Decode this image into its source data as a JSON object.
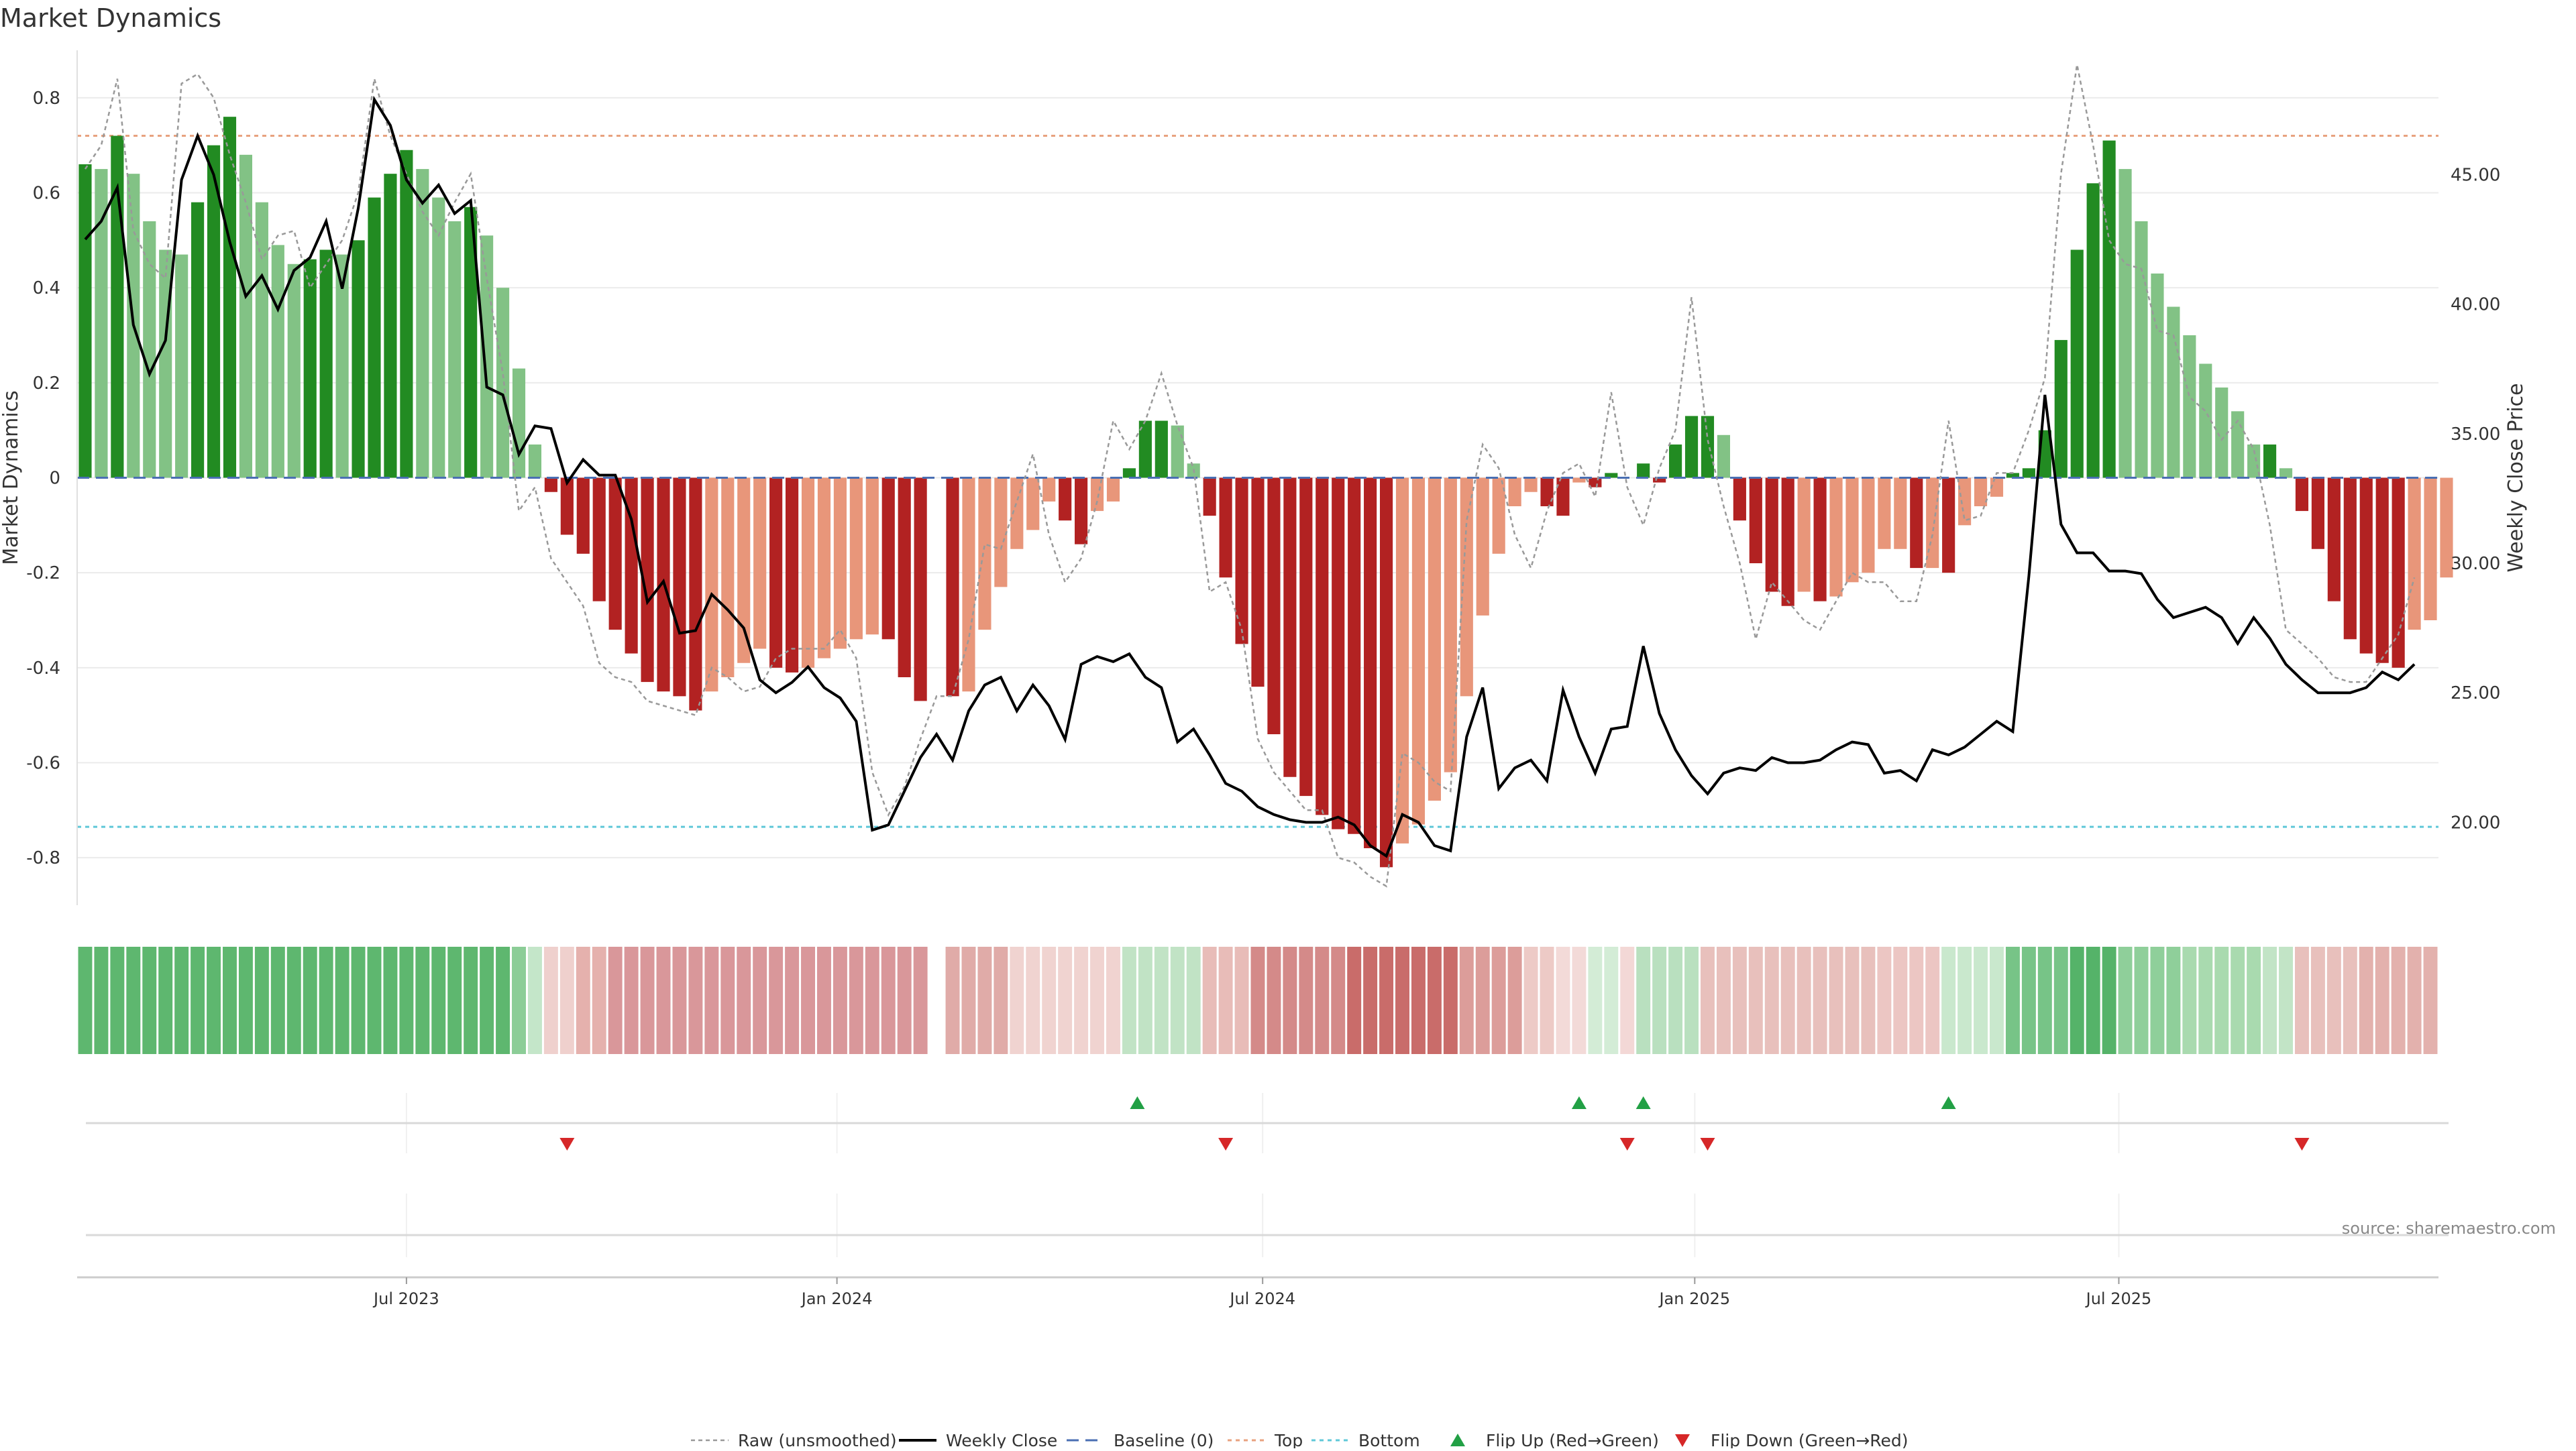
{
  "chart_data": {
    "type": "bar",
    "title": "Market Dynamics",
    "ylabel": "Market Dynamics",
    "y2label": "Weekly Close Price",
    "ylim": [
      -0.9,
      0.9
    ],
    "y2lim": [
      16.8,
      49.8
    ],
    "yticks": [
      -0.8,
      -0.6,
      -0.4,
      -0.2,
      0,
      0.2,
      0.4,
      0.6,
      0.8
    ],
    "ytick_labels": [
      "-0.8",
      "-0.6",
      "-0.4",
      "-0.2",
      "0",
      "0.2",
      "0.4",
      "0.6",
      "0.8"
    ],
    "y2ticks": [
      20,
      25,
      30,
      35,
      40,
      45
    ],
    "y2tick_labels": [
      "20.00",
      "25.00",
      "30.00",
      "35.00",
      "40.00",
      "45.00"
    ],
    "x_week_range": [
      0,
      147
    ],
    "xticks": [
      {
        "week": 20.5,
        "label": "Jul 2023"
      },
      {
        "week": 47.3,
        "label": "Jan 2024"
      },
      {
        "week": 73.8,
        "label": "Jul 2024"
      },
      {
        "week": 100.7,
        "label": "Jan 2025"
      },
      {
        "week": 127.1,
        "label": "Jul 2025"
      }
    ],
    "top_threshold": 0.72,
    "bottom_threshold": -0.735,
    "baseline": 0,
    "series": [
      {
        "name": "Market Dynamics",
        "values": [
          0.66,
          0.65,
          0.72,
          0.64,
          0.54,
          0.48,
          0.47,
          0.58,
          0.7,
          0.76,
          0.68,
          0.58,
          0.49,
          0.45,
          0.46,
          0.48,
          0.47,
          0.5,
          0.59,
          0.64,
          0.69,
          0.65,
          0.59,
          0.54,
          0.57,
          0.51,
          0.4,
          0.23,
          0.07,
          -0.03,
          -0.12,
          -0.16,
          -0.26,
          -0.32,
          -0.37,
          -0.43,
          -0.45,
          -0.46,
          -0.49,
          -0.45,
          -0.42,
          -0.39,
          -0.36,
          -0.4,
          -0.41,
          -0.4,
          -0.38,
          -0.36,
          -0.34,
          -0.33,
          -0.34,
          -0.42,
          -0.47,
          0.0,
          -0.46,
          -0.45,
          -0.32,
          -0.23,
          -0.15,
          -0.11,
          -0.05,
          -0.09,
          -0.14,
          -0.07,
          -0.05,
          0.02,
          0.12,
          0.12,
          0.11,
          0.03,
          -0.08,
          -0.21,
          -0.35,
          -0.44,
          -0.54,
          -0.63,
          -0.67,
          -0.71,
          -0.74,
          -0.75,
          -0.78,
          -0.82,
          -0.77,
          -0.73,
          -0.68,
          -0.62,
          -0.46,
          -0.29,
          -0.16,
          -0.06,
          -0.03,
          -0.06,
          -0.08,
          -0.01,
          -0.02,
          0.01,
          0.0,
          0.03,
          -0.01,
          0.07,
          0.13,
          0.13,
          0.09,
          -0.09,
          -0.18,
          -0.24,
          -0.27,
          -0.24,
          -0.26,
          -0.25,
          -0.22,
          -0.2,
          -0.15,
          -0.15,
          -0.19,
          -0.19,
          -0.2,
          -0.1,
          -0.06,
          -0.04,
          0.01,
          0.02,
          0.1,
          0.29,
          0.48,
          0.62,
          0.71,
          0.65,
          0.54,
          0.43,
          0.36,
          0.3,
          0.24,
          0.19,
          0.14,
          0.07,
          0.07,
          0.02,
          -0.07,
          -0.15,
          -0.26,
          -0.34,
          -0.37,
          -0.39,
          -0.4,
          -0.32,
          -0.3,
          -0.21
        ]
      },
      {
        "name": "Raw (unsmoothed)",
        "values": [
          0.65,
          0.7,
          0.84,
          0.52,
          0.45,
          0.42,
          0.83,
          0.85,
          0.8,
          0.68,
          0.58,
          0.46,
          0.51,
          0.52,
          0.4,
          0.45,
          0.5,
          0.6,
          0.84,
          0.72,
          0.64,
          0.56,
          0.51,
          0.58,
          0.64,
          0.42,
          0.22,
          -0.07,
          -0.02,
          -0.17,
          -0.22,
          -0.27,
          -0.39,
          -0.42,
          -0.43,
          -0.47,
          -0.48,
          -0.49,
          -0.5,
          -0.4,
          -0.42,
          -0.45,
          -0.44,
          -0.38,
          -0.36,
          -0.36,
          -0.36,
          -0.32,
          -0.38,
          -0.62,
          -0.71,
          -0.65,
          -0.55,
          -0.46,
          -0.46,
          -0.34,
          -0.14,
          -0.15,
          -0.05,
          0.05,
          -0.12,
          -0.22,
          -0.17,
          -0.05,
          0.12,
          0.06,
          0.12,
          0.22,
          0.11,
          0.02,
          -0.24,
          -0.22,
          -0.32,
          -0.55,
          -0.62,
          -0.66,
          -0.7,
          -0.7,
          -0.8,
          -0.81,
          -0.84,
          -0.86,
          -0.58,
          -0.6,
          -0.64,
          -0.66,
          -0.09,
          0.07,
          0.02,
          -0.12,
          -0.19,
          -0.07,
          0.01,
          0.03,
          -0.04,
          0.18,
          -0.02,
          -0.1,
          0.02,
          0.1,
          0.38,
          0.08,
          -0.06,
          -0.18,
          -0.34,
          -0.22,
          -0.26,
          -0.3,
          -0.32,
          -0.26,
          -0.2,
          -0.22,
          -0.22,
          -0.26,
          -0.26,
          -0.12,
          0.12,
          -0.09,
          -0.08,
          0.01,
          0.01,
          0.1,
          0.21,
          0.64,
          0.87,
          0.7,
          0.5,
          0.45,
          0.44,
          0.31,
          0.3,
          0.17,
          0.14,
          0.08,
          0.12,
          0.06,
          -0.1,
          -0.32,
          -0.35,
          -0.38,
          -0.42,
          -0.43,
          -0.43,
          -0.38,
          -0.33,
          -0.21
        ]
      },
      {
        "name": "Weekly Close",
        "values": [
          42.5,
          43.2,
          44.5,
          39.2,
          37.3,
          38.6,
          44.8,
          46.5,
          45.0,
          42.4,
          40.3,
          41.1,
          39.8,
          41.3,
          41.8,
          43.2,
          40.6,
          43.7,
          47.9,
          46.9,
          44.8,
          43.9,
          44.6,
          43.5,
          44.0,
          36.8,
          36.5,
          34.2,
          35.3,
          35.2,
          33.1,
          34.0,
          33.4,
          33.4,
          31.7,
          28.5,
          29.3,
          27.3,
          27.4,
          28.8,
          28.2,
          27.5,
          25.5,
          25.0,
          25.4,
          26.0,
          25.2,
          24.8,
          23.9,
          19.7,
          19.9,
          21.2,
          22.5,
          23.4,
          22.4,
          24.3,
          25.3,
          25.6,
          24.3,
          25.3,
          24.5,
          23.2,
          26.1,
          26.4,
          26.2,
          26.5,
          25.6,
          25.2,
          23.1,
          23.6,
          22.6,
          21.5,
          21.2,
          20.6,
          20.3,
          20.1,
          20.0,
          20.0,
          20.2,
          19.9,
          19.1,
          18.7,
          20.3,
          20.0,
          19.1,
          18.9,
          23.3,
          25.2,
          21.3,
          22.1,
          22.4,
          21.6,
          25.1,
          23.3,
          21.9,
          23.6,
          23.7,
          26.8,
          24.2,
          22.8,
          21.8,
          21.1,
          21.9,
          22.1,
          22.0,
          22.5,
          22.3,
          22.3,
          22.4,
          22.8,
          23.1,
          23.0,
          21.9,
          22.0,
          21.6,
          22.8,
          22.6,
          22.9,
          23.4,
          23.9,
          23.5,
          29.5,
          36.5,
          31.5,
          30.4,
          30.4,
          29.7,
          29.7,
          29.6,
          28.6,
          27.9,
          28.1,
          28.3,
          27.9,
          26.9,
          27.9,
          27.1,
          26.1,
          25.5,
          25.0,
          25.0,
          25.0,
          25.2,
          25.8,
          25.5,
          26.1
        ]
      }
    ],
    "heat_strip": [
      {
        "start": 0,
        "end": 27,
        "color": "#5eb76f"
      },
      {
        "start": 27,
        "end": 28,
        "color": "#8ccd97"
      },
      {
        "start": 28,
        "end": 29,
        "color": "#c4e6c9"
      },
      {
        "start": 29,
        "end": 31,
        "color": "#efd0cd"
      },
      {
        "start": 31,
        "end": 33,
        "color": "#e5b1ad"
      },
      {
        "start": 33,
        "end": 53,
        "color": "#d9979a"
      },
      {
        "start": 53,
        "end": 54,
        "color": "#ffffff"
      },
      {
        "start": 54,
        "end": 58,
        "color": "#e0aba8"
      },
      {
        "start": 58,
        "end": 65,
        "color": "#f0d3d0"
      },
      {
        "start": 65,
        "end": 70,
        "color": "#c1e3c5"
      },
      {
        "start": 70,
        "end": 73,
        "color": "#e8bcb8"
      },
      {
        "start": 73,
        "end": 79,
        "color": "#d48a89"
      },
      {
        "start": 79,
        "end": 86,
        "color": "#c96c6a"
      },
      {
        "start": 86,
        "end": 90,
        "color": "#dc9d9a"
      },
      {
        "start": 90,
        "end": 92,
        "color": "#edcac6"
      },
      {
        "start": 92,
        "end": 94,
        "color": "#f3dad8"
      },
      {
        "start": 94,
        "end": 96,
        "color": "#d3ecd6"
      },
      {
        "start": 96,
        "end": 97,
        "color": "#f3d8d6"
      },
      {
        "start": 97,
        "end": 101,
        "color": "#b9e0bf"
      },
      {
        "start": 101,
        "end": 112,
        "color": "#e8c0bc"
      },
      {
        "start": 112,
        "end": 116,
        "color": "#ecc6c3"
      },
      {
        "start": 116,
        "end": 120,
        "color": "#c9e8cd"
      },
      {
        "start": 120,
        "end": 124,
        "color": "#77c487"
      },
      {
        "start": 124,
        "end": 127,
        "color": "#55b369"
      },
      {
        "start": 127,
        "end": 131,
        "color": "#8fcf9a"
      },
      {
        "start": 131,
        "end": 136,
        "color": "#a9daaf"
      },
      {
        "start": 136,
        "end": 138,
        "color": "#c2e4c6"
      },
      {
        "start": 138,
        "end": 142,
        "color": "#e8c0bc"
      },
      {
        "start": 142,
        "end": 147,
        "color": "#e3b1ad"
      }
    ],
    "flips_up": [
      65.5,
      93.0,
      97.0,
      116.0
    ],
    "flips_down": [
      30.0,
      71.0,
      96.0,
      101.0,
      138.0
    ],
    "legend": {
      "placement": "bottom",
      "items": [
        {
          "name": "raw",
          "label": "Raw (unsmoothed)"
        },
        {
          "name": "weekly-close",
          "label": "Weekly Close"
        },
        {
          "name": "baseline",
          "label": "Baseline (0)"
        },
        {
          "name": "top",
          "label": "Top"
        },
        {
          "name": "bottom",
          "label": "Bottom"
        },
        {
          "name": "flip-up",
          "label": "Flip Up (Red→Green)"
        },
        {
          "name": "flip-down",
          "label": "Flip Down (Green→Red)"
        }
      ]
    },
    "source": "source: sharemaestro.com",
    "colors": {
      "green_strong": "#228b22",
      "green_light": "#82c285",
      "red_strong": "#b22222",
      "red_light": "#e8967a",
      "close_line": "#000000",
      "raw_line": "#999999",
      "baseline": "#4a6fb3",
      "top": "#e8a27f",
      "bottom": "#5fc8d8",
      "flip_up": "#22a045",
      "flip_down": "#d62728"
    }
  }
}
